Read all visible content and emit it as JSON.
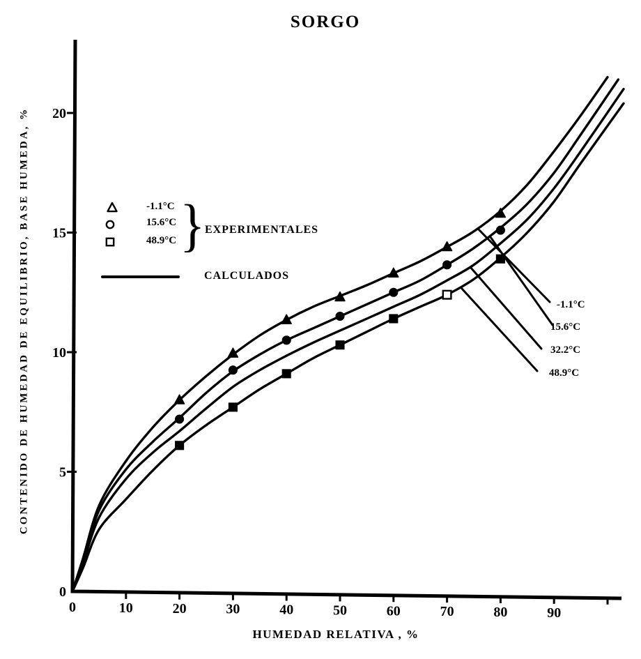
{
  "chart_data": {
    "type": "line",
    "title": "SORGO",
    "xlabel": "HUMEDAD RELATIVA , %",
    "ylabel": "CONTENIDO DE HUMEDAD DE EQUILIBRIO, BASE HUMEDA, %",
    "xlim": [
      0,
      103
    ],
    "ylim": [
      0,
      22.5
    ],
    "x_ticks": [
      0,
      10,
      20,
      30,
      40,
      50,
      60,
      70,
      80,
      90
    ],
    "y_ticks": [
      0,
      5,
      10,
      15,
      20
    ],
    "grid": false,
    "background_color": "#ffffff",
    "ink_color": "#000000",
    "legend_position": "upper-left-inside",
    "series": [
      {
        "name": "-1.1°C calculado",
        "kind": "line",
        "points": [
          [
            0,
            0
          ],
          [
            2,
            1.4
          ],
          [
            5,
            3.6
          ],
          [
            10,
            5.45
          ],
          [
            15,
            6.85
          ],
          [
            20,
            8.0
          ],
          [
            25,
            9.0
          ],
          [
            30,
            9.9
          ],
          [
            35,
            10.7
          ],
          [
            40,
            11.35
          ],
          [
            45,
            11.9
          ],
          [
            50,
            12.35
          ],
          [
            55,
            12.8
          ],
          [
            60,
            13.3
          ],
          [
            65,
            13.8
          ],
          [
            70,
            14.4
          ],
          [
            75,
            15.05
          ],
          [
            80,
            15.9
          ],
          [
            85,
            17.0
          ],
          [
            90,
            18.4
          ],
          [
            95,
            19.9
          ],
          [
            100,
            21.5
          ]
        ]
      },
      {
        "name": "15.6°C calculado",
        "kind": "line",
        "points": [
          [
            0,
            0
          ],
          [
            2,
            1.3
          ],
          [
            5,
            3.4
          ],
          [
            10,
            5.1
          ],
          [
            15,
            6.25
          ],
          [
            20,
            7.25
          ],
          [
            25,
            8.3
          ],
          [
            30,
            9.2
          ],
          [
            35,
            9.9
          ],
          [
            40,
            10.5
          ],
          [
            45,
            11.0
          ],
          [
            50,
            11.5
          ],
          [
            55,
            12.0
          ],
          [
            60,
            12.5
          ],
          [
            65,
            13.0
          ],
          [
            70,
            13.65
          ],
          [
            75,
            14.35
          ],
          [
            80,
            15.2
          ],
          [
            85,
            16.2
          ],
          [
            90,
            17.5
          ],
          [
            95,
            19.1
          ],
          [
            102,
            21.4
          ]
        ]
      },
      {
        "name": "32.2°C calculado",
        "kind": "line",
        "points": [
          [
            0,
            0
          ],
          [
            2,
            1.2
          ],
          [
            5,
            3.1
          ],
          [
            10,
            4.7
          ],
          [
            15,
            5.8
          ],
          [
            20,
            6.7
          ],
          [
            25,
            7.65
          ],
          [
            30,
            8.55
          ],
          [
            35,
            9.25
          ],
          [
            40,
            9.85
          ],
          [
            45,
            10.4
          ],
          [
            50,
            10.9
          ],
          [
            55,
            11.4
          ],
          [
            60,
            11.9
          ],
          [
            65,
            12.4
          ],
          [
            70,
            13.0
          ],
          [
            75,
            13.65
          ],
          [
            80,
            14.55
          ],
          [
            85,
            15.55
          ],
          [
            90,
            16.85
          ],
          [
            95,
            18.4
          ],
          [
            103,
            21.0
          ]
        ]
      },
      {
        "name": "48.9°C calculado",
        "kind": "line",
        "points": [
          [
            0,
            0
          ],
          [
            2,
            1.0
          ],
          [
            5,
            2.6
          ],
          [
            10,
            3.85
          ],
          [
            15,
            5.05
          ],
          [
            20,
            6.1
          ],
          [
            25,
            6.95
          ],
          [
            30,
            7.7
          ],
          [
            35,
            8.45
          ],
          [
            40,
            9.1
          ],
          [
            45,
            9.75
          ],
          [
            50,
            10.3
          ],
          [
            55,
            10.85
          ],
          [
            60,
            11.4
          ],
          [
            65,
            11.9
          ],
          [
            70,
            12.4
          ],
          [
            75,
            13.05
          ],
          [
            80,
            13.95
          ],
          [
            85,
            15.0
          ],
          [
            90,
            16.3
          ],
          [
            95,
            17.9
          ],
          [
            103,
            20.4
          ]
        ]
      },
      {
        "name": "-1.1°C experimental",
        "kind": "scatter",
        "marker": "triangle",
        "points": [
          [
            20,
            8.0
          ],
          [
            30,
            9.95
          ],
          [
            40,
            11.35
          ],
          [
            50,
            12.3
          ],
          [
            60,
            13.3
          ],
          [
            70,
            14.4
          ],
          [
            80,
            15.8
          ]
        ]
      },
      {
        "name": "15.6°C experimental",
        "kind": "scatter",
        "marker": "circle",
        "points": [
          [
            20,
            7.2
          ],
          [
            30,
            9.25
          ],
          [
            40,
            10.5
          ],
          [
            50,
            11.5
          ],
          [
            60,
            12.5
          ],
          [
            70,
            13.65
          ],
          [
            80,
            15.1
          ]
        ]
      },
      {
        "name": "48.9°C experimental",
        "kind": "scatter",
        "marker": "square",
        "open_at": [
          70
        ],
        "points": [
          [
            20,
            6.1
          ],
          [
            30,
            7.7
          ],
          [
            40,
            9.1
          ],
          [
            50,
            10.3
          ],
          [
            60,
            11.4
          ],
          [
            70,
            12.4
          ],
          [
            80,
            13.9
          ]
        ]
      }
    ],
    "legend": {
      "experimental": [
        {
          "marker": "triangle",
          "label": "-1.1°C"
        },
        {
          "marker": "circle",
          "label": "15.6°C"
        },
        {
          "marker": "square",
          "label": "48.9°C"
        }
      ],
      "experimental_group_label": "EXPERIMENTALES",
      "calculated_label": "CALCULADOS",
      "brace_glyph": "}"
    },
    "curve_annotations": [
      "-1.1°C",
      "15.6°C",
      "32.2°C",
      "48.9°C"
    ]
  }
}
